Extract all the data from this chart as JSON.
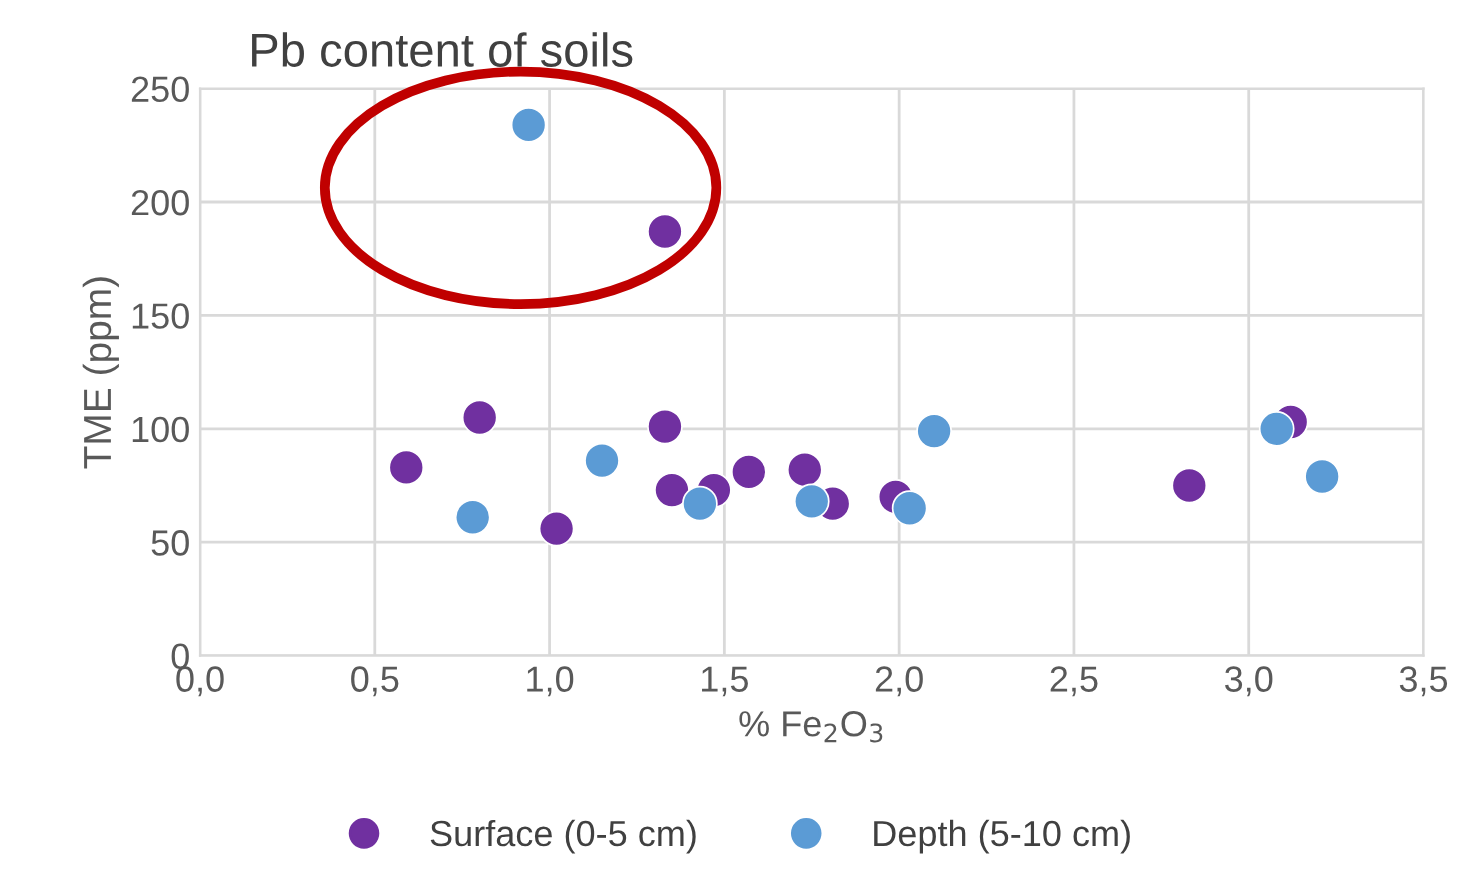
{
  "chart_data": {
    "type": "scatter",
    "title": "Pb content of soils",
    "xlabel": "% Fe$_{2}$O$_{3}$",
    "ylabel": "TME (ppm)",
    "xlim": [
      0,
      3.5
    ],
    "ylim": [
      0,
      250
    ],
    "xticks": [
      {
        "value": 0,
        "label": "0,0"
      },
      {
        "value": 0.5,
        "label": "0,5"
      },
      {
        "value": 1,
        "label": "1,0"
      },
      {
        "value": 1.5,
        "label": "1,5"
      },
      {
        "value": 2,
        "label": "2,0"
      },
      {
        "value": 2.5,
        "label": "2,5"
      },
      {
        "value": 3,
        "label": "3,0"
      },
      {
        "value": 3.5,
        "label": "3,5"
      }
    ],
    "yticks": [
      0,
      50,
      100,
      150,
      200,
      250
    ],
    "grid": true,
    "legend": "bottom",
    "marker": "circle",
    "series": [
      {
        "name": "Surface (0-5 cm)",
        "color": "#7030a0",
        "x": [
          0.59,
          0.8,
          1.02,
          1.33,
          1.33,
          1.35,
          1.47,
          1.57,
          1.73,
          1.81,
          1.99,
          2.83,
          3.12
        ],
        "values": [
          83,
          105,
          56,
          187,
          101,
          73,
          73,
          81,
          82,
          67,
          70,
          75,
          103
        ]
      },
      {
        "name": "Depth (5-10 cm)",
        "color": "#5b9bd5",
        "x": [
          0.78,
          0.94,
          1.15,
          1.43,
          1.75,
          2.03,
          2.1,
          3.08,
          3.21
        ],
        "values": [
          61,
          234,
          86,
          67,
          68,
          65,
          99,
          100,
          79
        ]
      }
    ]
  }
}
